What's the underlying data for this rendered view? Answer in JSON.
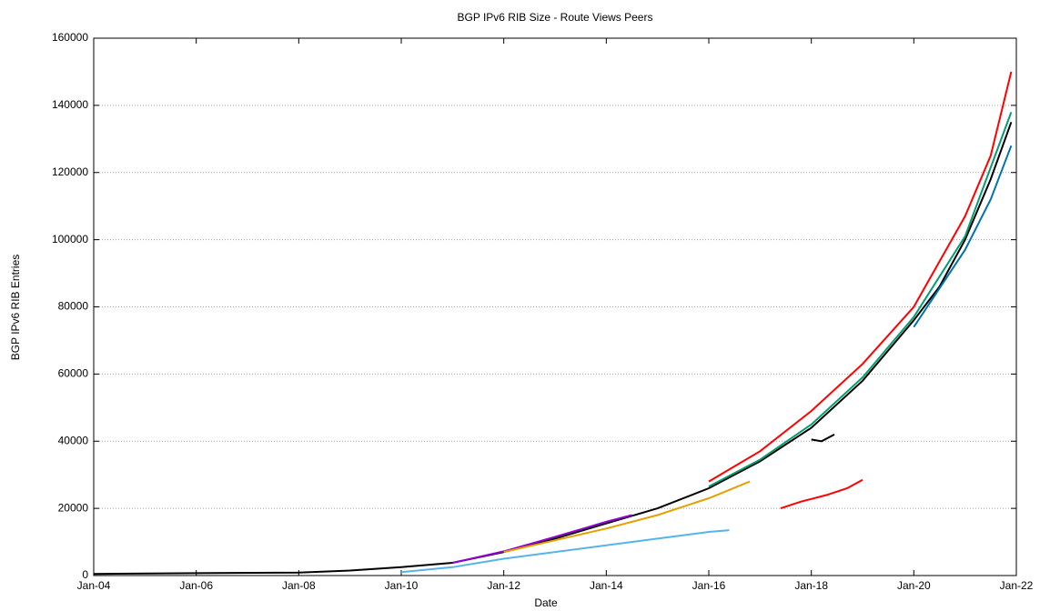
{
  "chart_data": {
    "type": "line",
    "title": "BGP IPv6 RIB Size - Route Views Peers",
    "xlabel": "Date",
    "ylabel": "BGP IPv6 RIB Entries",
    "xlim": [
      2004,
      2022
    ],
    "xticks": [
      {
        "value": 2004,
        "label": "Jan-04"
      },
      {
        "value": 2006,
        "label": "Jan-06"
      },
      {
        "value": 2008,
        "label": "Jan-08"
      },
      {
        "value": 2010,
        "label": "Jan-10"
      },
      {
        "value": 2012,
        "label": "Jan-12"
      },
      {
        "value": 2014,
        "label": "Jan-14"
      },
      {
        "value": 2016,
        "label": "Jan-16"
      },
      {
        "value": 2018,
        "label": "Jan-18"
      },
      {
        "value": 2020,
        "label": "Jan-20"
      },
      {
        "value": 2022,
        "label": "Jan-22"
      }
    ],
    "ylim": [
      0,
      160000
    ],
    "yticks": [
      0,
      20000,
      40000,
      60000,
      80000,
      100000,
      120000,
      140000,
      160000
    ],
    "grid": true,
    "series": [
      {
        "color": "#000000",
        "x": [
          2004,
          2006,
          2008,
          2009,
          2010,
          2011,
          2012,
          2013,
          2014,
          2015,
          2016,
          2017,
          2018,
          2019,
          2020,
          2020.5,
          2021,
          2021.5,
          2021.9
        ],
        "values": [
          500,
          700,
          900,
          1500,
          2500,
          3800,
          7000,
          11000,
          15500,
          20000,
          26000,
          34000,
          44000,
          58000,
          76000,
          86000,
          100000,
          118000,
          135000
        ]
      },
      {
        "color": "#9400d3",
        "x": [
          2011,
          2012,
          2013,
          2014,
          2014.5
        ],
        "values": [
          3800,
          7200,
          11500,
          16000,
          18000
        ]
      },
      {
        "color": "#009e73",
        "x": [
          2016,
          2017,
          2018,
          2019,
          2020,
          2021,
          2021.9
        ],
        "values": [
          26500,
          34500,
          45000,
          59000,
          77000,
          101000,
          138000
        ]
      },
      {
        "color": "#0072b2",
        "x": [
          2020,
          2021,
          2021.5,
          2021.9
        ],
        "values": [
          74000,
          97000,
          112000,
          128000
        ]
      },
      {
        "color": "#56b4e9",
        "x": [
          2010,
          2011,
          2012,
          2013,
          2014,
          2015,
          2016,
          2016.4
        ],
        "values": [
          1000,
          2500,
          5000,
          7000,
          9000,
          11000,
          13000,
          13500
        ]
      },
      {
        "color": "#e69f00",
        "x": [
          2012,
          2013,
          2014,
          2015,
          2016,
          2016.8
        ],
        "values": [
          7000,
          10500,
          14000,
          18000,
          23000,
          28000
        ]
      },
      {
        "color": "#ff0000",
        "x": [
          2016,
          2017,
          2018,
          2019,
          2020,
          2021,
          2021.5,
          2021.9
        ],
        "values": [
          28000,
          37000,
          49000,
          63000,
          80000,
          107000,
          125000,
          150000
        ]
      },
      {
        "color": "#ff0000",
        "x": [
          2017.4,
          2017.8,
          2018.3,
          2018.7,
          2019
        ],
        "values": [
          20000,
          22000,
          24000,
          26000,
          28500
        ]
      },
      {
        "color": "#000000",
        "x": [
          2018.0,
          2018.2,
          2018.45
        ],
        "values": [
          40500,
          40000,
          42000
        ]
      }
    ]
  }
}
